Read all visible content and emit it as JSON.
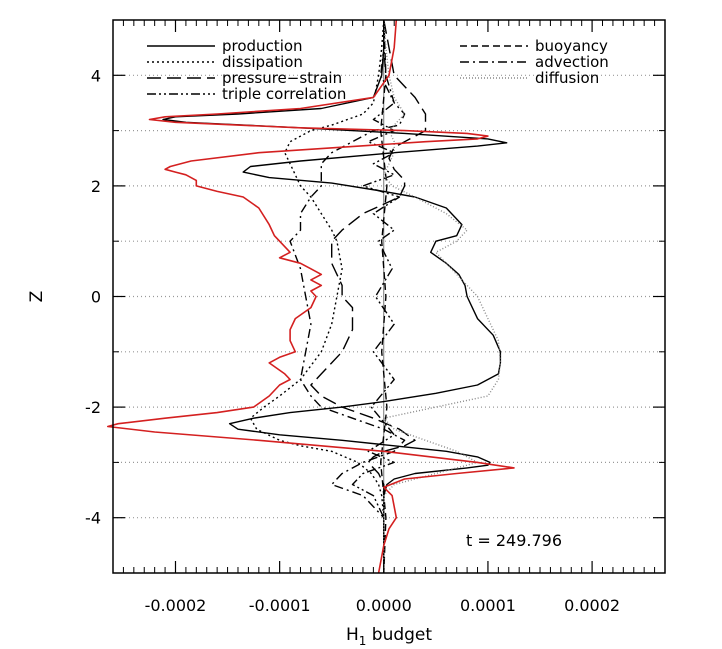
{
  "chart_data": {
    "type": "line",
    "xlabel": "H",
    "xlabel_sub": "1",
    "xlabel_rest": " budget",
    "ylabel": "Z",
    "xlim": [
      -0.00026,
      0.00027
    ],
    "ylim": [
      -5.0,
      5.0
    ],
    "x_ticks": [
      -0.0002,
      -0.0001,
      0.0,
      0.0001,
      0.0002
    ],
    "x_tick_labels": [
      "-0.0002",
      "-0.0001",
      "0.0000",
      "0.0001",
      "0.0002"
    ],
    "y_ticks": [
      -4,
      -2,
      0,
      2,
      4
    ],
    "y_tick_labels": [
      "-4",
      "-2",
      "0",
      "2",
      "4"
    ],
    "hgrid_dotted": [
      -4,
      -3,
      -2,
      -1,
      0,
      1,
      2,
      3,
      4
    ],
    "annotation": "t  =  249.796",
    "legend": {
      "placement": "top",
      "entries_left": [
        "production",
        "dissipation",
        "pressure−strain",
        "triple correlation"
      ],
      "entries_right": [
        "buoyancy",
        "advection",
        "diffusion"
      ]
    },
    "series": [
      {
        "name": "production",
        "color": "#000000",
        "dash": "solid",
        "z": [
          5.0,
          4.5,
          4.0,
          3.6,
          3.4,
          3.3,
          3.25,
          3.2,
          3.15,
          3.05,
          2.95,
          2.85,
          2.78,
          2.72,
          2.6,
          2.45,
          2.35,
          2.25,
          2.15,
          2.05,
          1.9,
          1.8,
          1.6,
          1.3,
          1.1,
          1.0,
          0.8,
          0.6,
          0.4,
          0.2,
          0.0,
          -0.2,
          -0.4,
          -0.7,
          -1.0,
          -1.2,
          -1.4,
          -1.6,
          -1.75,
          -1.9,
          -2.0,
          -2.1,
          -2.2,
          -2.3,
          -2.4,
          -2.5,
          -2.6,
          -2.7,
          -2.8,
          -2.9,
          -3.0,
          -3.05,
          -3.1,
          -3.2,
          -3.3,
          -3.4,
          -3.6,
          -4.0,
          -4.5,
          -5.0
        ],
        "x": [
          0.0,
          0.0,
          -2e-06,
          -1e-05,
          -6e-05,
          -0.00014,
          -0.0002,
          -0.000212,
          -0.00019,
          -8e-05,
          2e-05,
          0.0001,
          0.000118,
          9e-05,
          1e-05,
          -8e-05,
          -0.000128,
          -0.000135,
          -0.00011,
          -5e-05,
          0.0,
          3e-05,
          6e-05,
          7.5e-05,
          7e-05,
          5e-05,
          4.5e-05,
          6e-05,
          7.2e-05,
          7.8e-05,
          8e-05,
          8.5e-05,
          9e-05,
          0.000105,
          0.000112,
          0.000112,
          0.00011,
          9e-05,
          5e-05,
          0.0,
          -4e-05,
          -9e-05,
          -0.000125,
          -0.000148,
          -0.00014,
          -0.0001,
          -4e-05,
          1e-05,
          6e-05,
          9e-05,
          0.000102,
          0.0001,
          8e-05,
          3e-05,
          1e-05,
          3e-06,
          0.0,
          0.0,
          0.0,
          0.0
        ]
      },
      {
        "name": "dissipation",
        "color": "#000000",
        "dash": "dotted",
        "z": [
          5.0,
          4.5,
          4.0,
          3.5,
          3.3,
          3.1,
          3.0,
          2.8,
          2.6,
          2.4,
          2.2,
          2.0,
          1.8,
          1.5,
          1.2,
          1.0,
          0.5,
          0.0,
          -0.5,
          -1.0,
          -1.5,
          -1.8,
          -2.0,
          -2.2,
          -2.4,
          -2.6,
          -2.7,
          -2.8,
          -3.0,
          -3.2,
          -3.4,
          -3.6,
          -4.0,
          -4.5,
          -5.0
        ],
        "x": [
          0.0,
          -2e-06,
          -5e-06,
          -1e-05,
          -2e-05,
          -5e-05,
          -7e-05,
          -9e-05,
          -9.5e-05,
          -9e-05,
          -8.5e-05,
          -8e-05,
          -7e-05,
          -6e-05,
          -5e-05,
          -4.5e-05,
          -4e-05,
          -4.5e-05,
          -5e-05,
          -6e-05,
          -8e-05,
          -0.0001,
          -0.000115,
          -0.000128,
          -0.000122,
          -0.0001,
          -8e-05,
          -5e-05,
          -2.5e-05,
          -1.2e-05,
          -5e-06,
          -2e-06,
          0.0,
          0.0,
          0.0
        ]
      },
      {
        "name": "pressure−strain",
        "color": "#000000",
        "dash": "longdash",
        "z": [
          5.0,
          4.5,
          4.0,
          3.6,
          3.3,
          3.0,
          2.8,
          2.7,
          2.5,
          2.3,
          2.1,
          2.0,
          1.8,
          1.5,
          1.2,
          1.0,
          0.6,
          0.2,
          0.0,
          -0.2,
          -0.6,
          -1.0,
          -1.4,
          -1.6,
          -1.8,
          -2.0,
          -2.2,
          -2.4,
          -2.6,
          -2.7,
          -2.8,
          -2.9,
          -3.0,
          -3.2,
          -3.4,
          -3.6,
          -4.0,
          -4.5,
          -5.0
        ],
        "x": [
          0.0,
          5e-06,
          1e-05,
          3e-05,
          4e-05,
          4e-05,
          2e-05,
          1e-05,
          5e-06,
          1e-05,
          2e-05,
          2e-05,
          1.5e-05,
          -2e-05,
          -4e-05,
          -5e-05,
          -5e-05,
          -4e-05,
          -4e-05,
          -3e-05,
          -3e-05,
          -4e-05,
          -6e-05,
          -7e-05,
          -6e-05,
          -4e-05,
          -1e-05,
          1.5e-05,
          3e-05,
          2e-05,
          0.0,
          -1e-05,
          -1.5e-05,
          -5e-06,
          0.0,
          0.0,
          0.0,
          0.0,
          0.0
        ]
      },
      {
        "name": "triple correlation",
        "color": "#000000",
        "dash": "dashdotdot",
        "z": [
          5.0,
          4.5,
          4.0,
          3.5,
          3.2,
          3.0,
          2.8,
          2.6,
          2.4,
          2.2,
          2.0,
          1.8,
          1.5,
          1.2,
          1.0,
          0.5,
          0.0,
          -0.5,
          -1.0,
          -1.5,
          -2.0,
          -2.5,
          -2.8,
          -3.0,
          -3.2,
          -3.4,
          -3.6,
          -4.0,
          -4.5,
          -5.0
        ],
        "x": [
          0.0,
          0.0,
          -3e-06,
          1e-05,
          -1e-05,
          1e-05,
          -1.5e-05,
          1e-05,
          -1e-05,
          1e-05,
          -2e-05,
          1.5e-05,
          -1e-05,
          1e-05,
          -5e-06,
          8e-06,
          -8e-06,
          1e-05,
          -1e-05,
          1e-05,
          -1.2e-05,
          1e-05,
          -1.5e-05,
          1e-05,
          -2e-05,
          -3e-05,
          -1e-05,
          0.0,
          0.0,
          0.0
        ]
      },
      {
        "name": "buoyancy",
        "color": "#000000",
        "dash": "shortdash",
        "z": [
          5.0,
          4.0,
          3.0,
          2.0,
          1.0,
          0.0,
          -1.0,
          -2.0,
          -3.0,
          -4.0,
          -5.0
        ],
        "x": [
          0.0,
          2e-06,
          -3e-06,
          3e-06,
          -2e-06,
          2e-06,
          -2e-06,
          3e-06,
          -3e-06,
          2e-06,
          0.0
        ]
      },
      {
        "name": "advection",
        "color": "#000000",
        "dash": "dashdot",
        "z": [
          5.0,
          4.5,
          4.0,
          3.5,
          3.3,
          3.1,
          3.0,
          2.8,
          2.6,
          2.4,
          2.2,
          2.0,
          1.8,
          1.5,
          1.2,
          1.0,
          0.5,
          0.0,
          -0.5,
          -1.0,
          -1.5,
          -1.8,
          -2.0,
          -2.2,
          -2.4,
          -2.6,
          -2.8,
          -3.0,
          -3.2,
          -3.4,
          -3.6,
          -4.0,
          -4.5,
          -5.0
        ],
        "x": [
          0.0,
          0.0,
          2e-06,
          1e-05,
          2e-05,
          1.5e-05,
          -1e-05,
          -3e-05,
          -5e-05,
          -6e-05,
          -6e-05,
          -6e-05,
          -7e-05,
          -8e-05,
          -8e-05,
          -9e-05,
          -8e-05,
          -7.5e-05,
          -7e-05,
          -7.5e-05,
          -8e-05,
          -7e-05,
          -6e-05,
          -3e-05,
          0.0,
          2e-05,
          1e-05,
          -2e-05,
          -4e-05,
          -5e-05,
          -2e-05,
          0.0,
          0.0,
          0.0
        ]
      },
      {
        "name": "diffusion",
        "color": "#888888",
        "dash": "finedot",
        "z": [
          5.0,
          4.5,
          4.0,
          3.6,
          3.3,
          3.1,
          3.0,
          2.8,
          2.6,
          2.4,
          2.2,
          2.0,
          1.8,
          1.5,
          1.2,
          1.0,
          0.8,
          0.6,
          0.4,
          0.2,
          0.0,
          -0.4,
          -0.8,
          -1.2,
          -1.5,
          -1.8,
          -2.0,
          -2.2,
          -2.4,
          -2.6,
          -2.8,
          -3.0,
          -3.2,
          -3.4,
          -3.6,
          -4.0,
          -4.5,
          -5.0
        ],
        "x": [
          0.0,
          2e-06,
          5e-06,
          1e-05,
          2e-05,
          1e-05,
          5e-06,
          1e-05,
          1e-05,
          5e-06,
          0.0,
          8e-06,
          3e-05,
          6e-05,
          8e-05,
          7e-05,
          5e-05,
          6e-05,
          7e-05,
          8e-05,
          9e-05,
          0.0001,
          0.00011,
          0.000112,
          0.00011,
          0.0001,
          5e-05,
          0.0,
          1e-05,
          4e-05,
          7e-05,
          9e-05,
          5e-05,
          1e-05,
          0.0,
          0.0,
          0.0,
          0.0
        ]
      },
      {
        "name": "",
        "color": "#d42020",
        "dash": "solid",
        "z": [
          5.0,
          4.5,
          4.0,
          3.6,
          3.4,
          3.3,
          3.25,
          3.2,
          3.15,
          3.05,
          3.0,
          2.95,
          2.9,
          2.85,
          2.8,
          2.7,
          2.6,
          2.45,
          2.35,
          2.3,
          2.25,
          2.2,
          2.1,
          2.0,
          1.9,
          1.8,
          1.6,
          1.3,
          1.1,
          1.0,
          0.8,
          0.7,
          0.6,
          0.5,
          0.4,
          0.3,
          0.2,
          0.1,
          0.0,
          -0.2,
          -0.4,
          -0.6,
          -0.8,
          -1.0,
          -1.1,
          -1.2,
          -1.4,
          -1.5,
          -1.6,
          -1.8,
          -2.0,
          -2.1,
          -2.2,
          -2.3,
          -2.35,
          -2.45,
          -2.6,
          -2.8,
          -3.0,
          -3.1,
          -3.2,
          -3.3,
          -3.45,
          -3.6,
          -4.0,
          -4.2,
          -4.5,
          -5.0
        ],
        "x": [
          1.2e-05,
          1e-05,
          5e-06,
          -1e-05,
          -8e-05,
          -0.00016,
          -0.00021,
          -0.000225,
          -0.0002,
          -8e-05,
          2e-05,
          8e-05,
          0.0001,
          9e-05,
          4e-05,
          -4e-05,
          -0.00012,
          -0.000185,
          -0.000205,
          -0.00021,
          -0.0002,
          -0.00019,
          -0.00018,
          -0.00018,
          -0.00016,
          -0.000135,
          -0.00012,
          -0.00011,
          -0.000105,
          -0.0001,
          -9e-05,
          -0.0001,
          -8e-05,
          -7e-05,
          -6e-05,
          -7e-05,
          -6e-05,
          -7e-05,
          -6.5e-05,
          -7e-05,
          -8.5e-05,
          -9e-05,
          -9e-05,
          -8.5e-05,
          -0.0001,
          -0.00011,
          -9.5e-05,
          -9e-05,
          -0.0001,
          -0.00011,
          -0.000125,
          -0.00016,
          -0.00021,
          -0.000255,
          -0.000265,
          -0.00022,
          -0.00012,
          0.0,
          9e-05,
          0.000125,
          7e-05,
          2e-05,
          0.0,
          8e-06,
          1.2e-05,
          5e-06,
          0.0,
          -5e-06
        ]
      }
    ]
  }
}
